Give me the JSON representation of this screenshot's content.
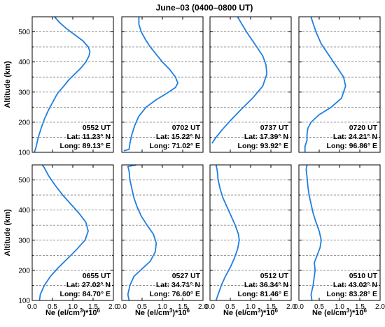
{
  "title": "June–03 (0400–0800 UT)",
  "colors": {
    "line": "#1f7fe0",
    "grid": "#555555",
    "frame": "#000000"
  },
  "chart_data": {
    "type": "line",
    "title": "June–03 (0400–0800 UT)",
    "ylabel": "Altitude (km)",
    "xlabel_main": "Ne (el/cm",
    "xlabel_sup3": "3",
    "xlabel_rest": ")*10",
    "xlabel_sup6": "6",
    "ylim": [
      100,
      550
    ],
    "xlim": [
      0.0,
      2.0
    ],
    "yticks": [
      "100",
      "200",
      "300",
      "400",
      "500"
    ],
    "xticks": [
      "0.0",
      "0.5",
      "1.0",
      "1.5",
      "2.0"
    ],
    "grid": "horizontal dashed at 150 km intervals of 50",
    "panels": [
      {
        "time": "0552 UT",
        "lat": "Lat: 11.23° N",
        "long": "Long: 89.13° E",
        "points": [
          [
            0.05,
            100
          ],
          [
            0.08,
            110
          ],
          [
            0.1,
            120
          ],
          [
            0.15,
            150
          ],
          [
            0.22,
            180
          ],
          [
            0.3,
            210
          ],
          [
            0.4,
            240
          ],
          [
            0.52,
            270
          ],
          [
            0.6,
            290
          ],
          [
            0.65,
            300
          ],
          [
            0.78,
            320
          ],
          [
            0.9,
            340
          ],
          [
            1.05,
            360
          ],
          [
            1.2,
            380
          ],
          [
            1.32,
            400
          ],
          [
            1.4,
            420
          ],
          [
            1.42,
            435
          ],
          [
            1.38,
            450
          ],
          [
            1.25,
            470
          ],
          [
            1.05,
            490
          ],
          [
            0.85,
            510
          ],
          [
            0.68,
            530
          ],
          [
            0.55,
            550
          ]
        ]
      },
      {
        "time": "0702 UT",
        "lat": "Lat: 15.22° N",
        "long": "Long: 71.02° E",
        "points": [
          [
            0.05,
            105
          ],
          [
            0.18,
            110
          ],
          [
            0.2,
            130
          ],
          [
            0.25,
            160
          ],
          [
            0.32,
            190
          ],
          [
            0.42,
            220
          ],
          [
            0.6,
            250
          ],
          [
            0.85,
            275
          ],
          [
            1.1,
            295
          ],
          [
            1.32,
            315
          ],
          [
            1.38,
            330
          ],
          [
            1.32,
            350
          ],
          [
            1.18,
            375
          ],
          [
            1.0,
            400
          ],
          [
            0.85,
            425
          ],
          [
            0.7,
            450
          ],
          [
            0.58,
            475
          ],
          [
            0.48,
            500
          ],
          [
            0.42,
            525
          ],
          [
            0.42,
            550
          ]
        ]
      },
      {
        "time": "0737 UT",
        "lat": "Lat: 17.39° N",
        "long": "Long: 93.92° E",
        "points": [
          [
            0.05,
            130
          ],
          [
            0.15,
            150
          ],
          [
            0.3,
            175
          ],
          [
            0.5,
            205
          ],
          [
            0.75,
            240
          ],
          [
            1.05,
            280
          ],
          [
            1.3,
            320
          ],
          [
            1.4,
            360
          ],
          [
            1.38,
            390
          ],
          [
            1.3,
            420
          ],
          [
            1.1,
            460
          ],
          [
            0.9,
            500
          ],
          [
            0.72,
            540
          ],
          [
            0.68,
            550
          ]
        ]
      },
      {
        "time": "0720 UT",
        "lat": "Lat: 24.21° N",
        "long": "Long: 96.86° E",
        "points": [
          [
            0.15,
            100
          ],
          [
            0.15,
            120
          ],
          [
            0.2,
            140
          ],
          [
            0.2,
            160
          ],
          [
            0.22,
            180
          ],
          [
            0.3,
            200
          ],
          [
            0.5,
            225
          ],
          [
            0.8,
            250
          ],
          [
            1.05,
            280
          ],
          [
            1.15,
            320
          ],
          [
            1.1,
            350
          ],
          [
            0.95,
            380
          ],
          [
            0.75,
            420
          ],
          [
            0.55,
            460
          ],
          [
            0.42,
            500
          ],
          [
            0.32,
            540
          ],
          [
            0.3,
            550
          ]
        ]
      },
      {
        "time": "0655 UT",
        "lat": "Lat: 27.02° N",
        "long": "Long: 84.70° E",
        "points": [
          [
            0.18,
            100
          ],
          [
            0.2,
            120
          ],
          [
            0.3,
            150
          ],
          [
            0.45,
            180
          ],
          [
            0.65,
            210
          ],
          [
            0.88,
            240
          ],
          [
            1.1,
            270
          ],
          [
            1.3,
            300
          ],
          [
            1.38,
            330
          ],
          [
            1.32,
            360
          ],
          [
            1.15,
            390
          ],
          [
            0.95,
            420
          ],
          [
            0.75,
            450
          ],
          [
            0.55,
            485
          ],
          [
            0.4,
            515
          ],
          [
            0.3,
            540
          ],
          [
            0.25,
            550
          ]
        ]
      },
      {
        "time": "0527 UT",
        "lat": "Lat: 34.71° N",
        "long": "Long: 76.60° E",
        "points": [
          [
            0.18,
            100
          ],
          [
            0.15,
            120
          ],
          [
            0.2,
            150
          ],
          [
            0.3,
            180
          ],
          [
            0.5,
            205
          ],
          [
            0.7,
            230
          ],
          [
            0.82,
            260
          ],
          [
            0.85,
            290
          ],
          [
            0.78,
            320
          ],
          [
            0.62,
            350
          ],
          [
            0.48,
            380
          ],
          [
            0.38,
            410
          ],
          [
            0.3,
            440
          ],
          [
            0.25,
            470
          ],
          [
            0.2,
            500
          ],
          [
            0.18,
            530
          ],
          [
            0.15,
            545
          ],
          [
            0.35,
            550
          ]
        ]
      },
      {
        "time": "0512 UT",
        "lat": "Lat: 36.34° N",
        "long": "Long: 81.46° E",
        "points": [
          [
            0.15,
            100
          ],
          [
            0.2,
            120
          ],
          [
            0.28,
            150
          ],
          [
            0.38,
            180
          ],
          [
            0.5,
            210
          ],
          [
            0.6,
            240
          ],
          [
            0.68,
            270
          ],
          [
            0.72,
            300
          ],
          [
            0.7,
            320
          ],
          [
            0.62,
            350
          ],
          [
            0.52,
            380
          ],
          [
            0.42,
            410
          ],
          [
            0.32,
            440
          ],
          [
            0.25,
            470
          ],
          [
            0.2,
            500
          ],
          [
            0.18,
            530
          ],
          [
            0.15,
            550
          ]
        ]
      },
      {
        "time": "0510 UT",
        "lat": "Lat: 43.02° N",
        "long": "Long: 83.28° E",
        "points": [
          [
            0.32,
            100
          ],
          [
            0.3,
            120
          ],
          [
            0.35,
            150
          ],
          [
            0.38,
            180
          ],
          [
            0.4,
            200
          ],
          [
            0.38,
            225
          ],
          [
            0.45,
            250
          ],
          [
            0.52,
            275
          ],
          [
            0.55,
            300
          ],
          [
            0.5,
            330
          ],
          [
            0.42,
            360
          ],
          [
            0.35,
            390
          ],
          [
            0.3,
            420
          ],
          [
            0.25,
            450
          ],
          [
            0.22,
            480
          ],
          [
            0.2,
            510
          ],
          [
            0.18,
            535
          ],
          [
            0.2,
            550
          ]
        ]
      }
    ]
  }
}
